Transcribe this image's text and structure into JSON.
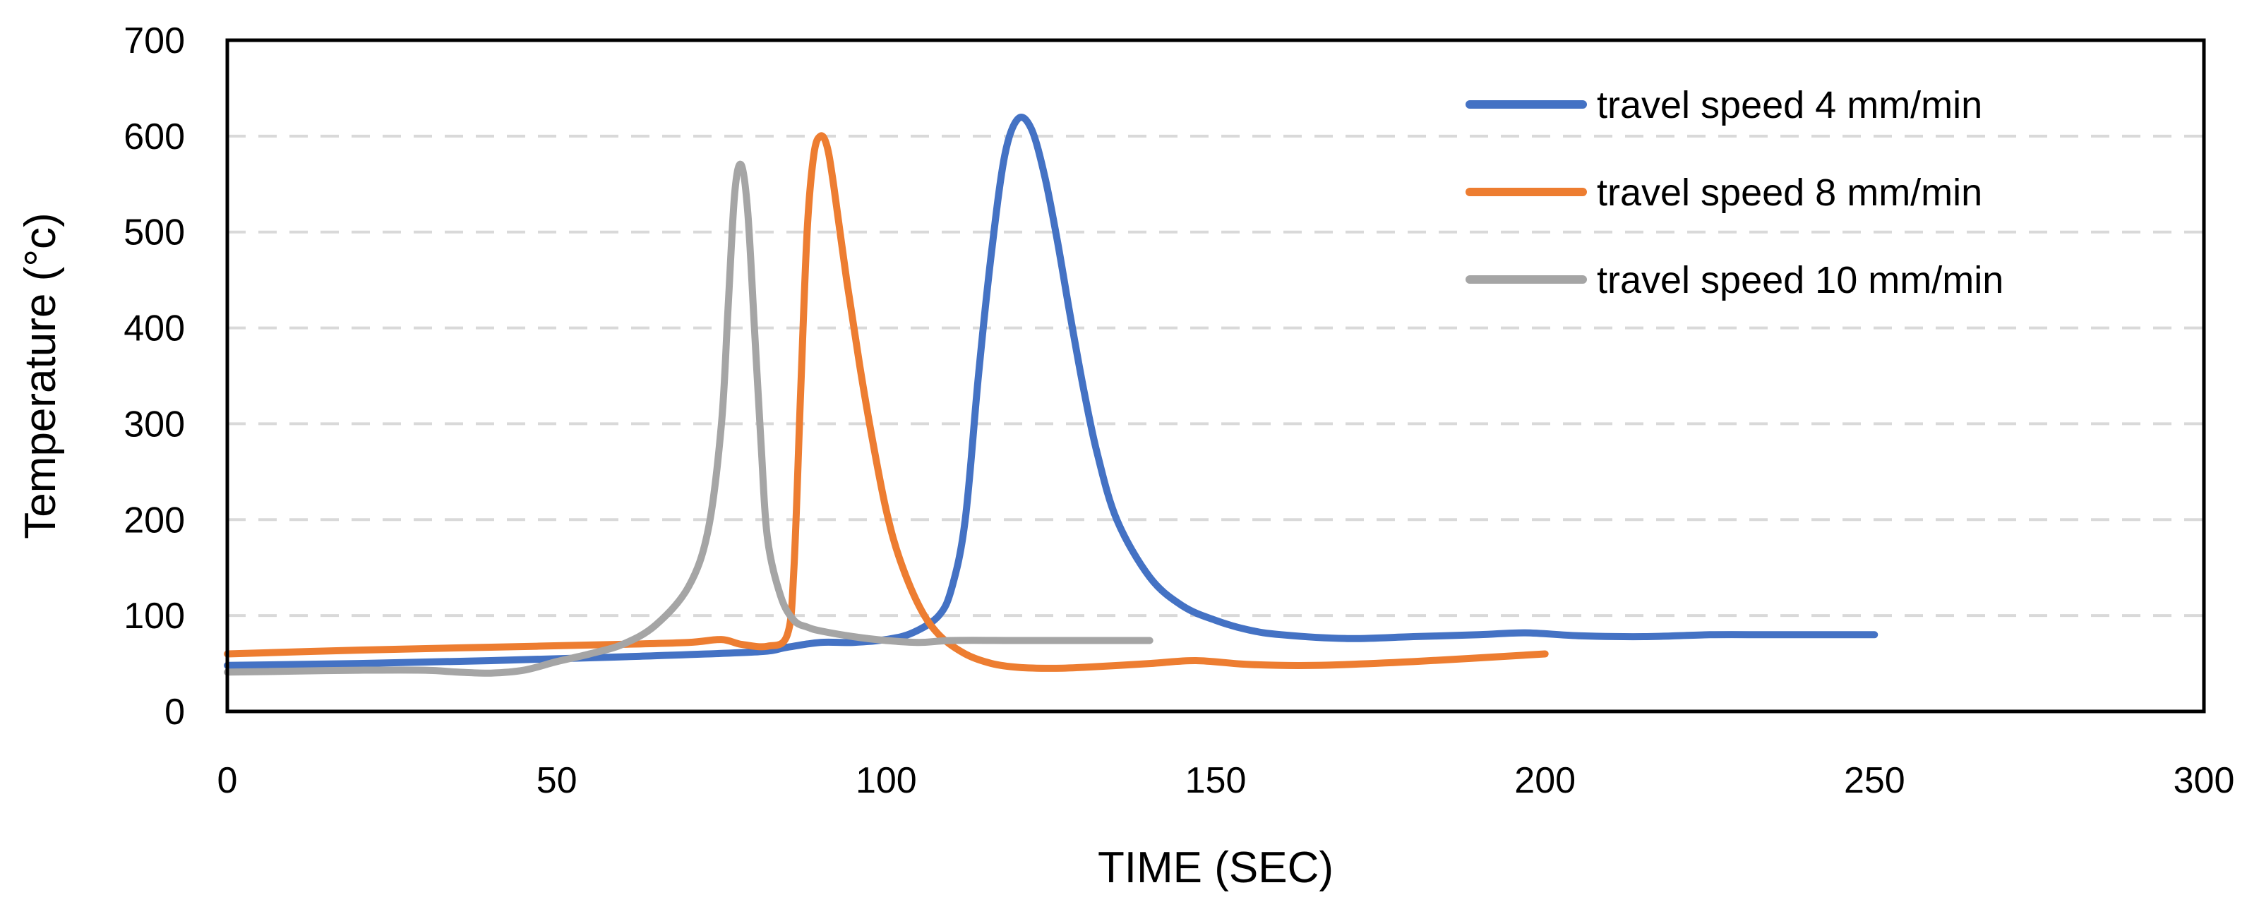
{
  "chart_data": {
    "type": "line",
    "title": "",
    "xlabel": "TIME (SEC)",
    "ylabel": "Temperature (°c)",
    "xlim": [
      0,
      300
    ],
    "ylim": [
      0,
      700
    ],
    "x_ticks": [
      0,
      50,
      100,
      150,
      200,
      250,
      300
    ],
    "y_ticks": [
      0,
      100,
      200,
      300,
      400,
      500,
      600,
      700
    ],
    "grid": "horizontal-dashed",
    "legend_position": "top-right",
    "series": [
      {
        "name": "travel speed 4 mm/min",
        "color": "#4472c4",
        "x": [
          0,
          20,
          40,
          60,
          80,
          85,
          90,
          95,
          100,
          104,
          108,
          110,
          112,
          114,
          116,
          118,
          120,
          122,
          124,
          126,
          128,
          130,
          132,
          135,
          140,
          145,
          150,
          155,
          160,
          170,
          180,
          190,
          197,
          205,
          215,
          225,
          235,
          250
        ],
        "y": [
          48,
          50,
          53,
          57,
          62,
          67,
          72,
          72,
          75,
          82,
          100,
          130,
          200,
          350,
          480,
          580,
          618,
          608,
          560,
          490,
          410,
          335,
          270,
          200,
          140,
          110,
          95,
          85,
          80,
          76,
          78,
          80,
          82,
          79,
          78,
          80,
          80,
          80
        ]
      },
      {
        "name": "travel speed 8 mm/min",
        "color": "#ed7d31",
        "x": [
          0,
          20,
          40,
          60,
          70,
          75,
          78,
          82,
          85,
          86,
          87,
          88,
          89,
          90,
          91,
          92,
          94,
          96,
          98,
          100,
          102,
          105,
          108,
          112,
          116,
          120,
          125,
          130,
          140,
          147,
          155,
          165,
          180,
          200
        ],
        "y": [
          60,
          64,
          67,
          70,
          72,
          75,
          70,
          68,
          80,
          150,
          330,
          500,
          580,
          600,
          590,
          550,
          450,
          360,
          280,
          210,
          160,
          110,
          80,
          60,
          50,
          46,
          45,
          46,
          50,
          53,
          49,
          48,
          52,
          60
        ]
      },
      {
        "name": "travel speed 10 mm/min",
        "color": "#a5a5a5",
        "x": [
          0,
          10,
          20,
          30,
          35,
          40,
          45,
          50,
          55,
          60,
          65,
          70,
          73,
          75,
          76,
          77,
          78,
          79,
          80,
          81,
          82,
          84,
          86,
          88,
          90,
          95,
          100,
          105,
          110,
          120,
          130,
          140
        ],
        "y": [
          41,
          42,
          43,
          43,
          41,
          40,
          43,
          52,
          60,
          70,
          90,
          130,
          190,
          300,
          420,
          540,
          570,
          520,
          400,
          280,
          180,
          120,
          95,
          88,
          84,
          78,
          74,
          72,
          74,
          74,
          74,
          74
        ]
      }
    ]
  }
}
